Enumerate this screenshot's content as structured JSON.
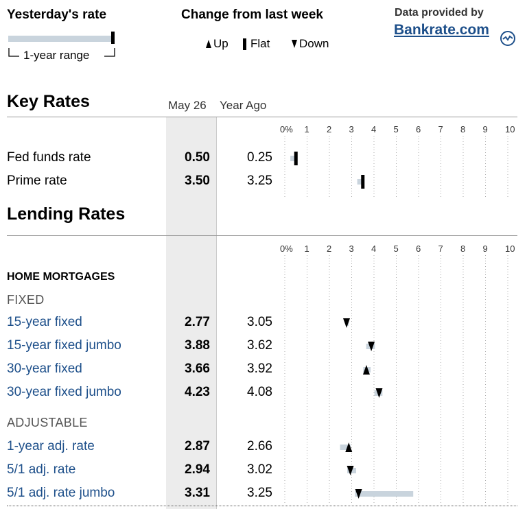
{
  "legend": {
    "yesterday_title": "Yesterday's rate",
    "range_label": "1-year range",
    "change_title": "Change from last week",
    "up_label": "Up",
    "flat_label": "Flat",
    "down_label": "Down",
    "provider_label": "Data provided by",
    "provider_logo": "Bankrate.com"
  },
  "columns": {
    "current": "May 26",
    "year_ago": "Year Ago"
  },
  "chart_data": {
    "type": "range-dot",
    "x_ticks": [
      "0%",
      "1",
      "2",
      "3",
      "4",
      "5",
      "6",
      "7",
      "8",
      "9",
      "10"
    ],
    "xlim": [
      0,
      10
    ],
    "sections": [
      {
        "title": "Key Rates",
        "groups": [
          {
            "header": "",
            "subheader": "",
            "rows": [
              {
                "label": "Fed funds rate",
                "current": "0.50",
                "year_ago": "0.25",
                "value": 0.5,
                "range": [
                  0.25,
                  0.5
                ],
                "trend": "flat"
              },
              {
                "label": "Prime rate",
                "current": "3.50",
                "year_ago": "3.25",
                "value": 3.5,
                "range": [
                  3.25,
                  3.5
                ],
                "trend": "flat"
              }
            ]
          }
        ]
      },
      {
        "title": "Lending Rates",
        "groups": [
          {
            "header": "HOME MORTGAGES",
            "subheader": "FIXED",
            "rows": [
              {
                "label": "15-year fixed",
                "current": "2.77",
                "year_ago": "3.05",
                "value": 2.77,
                "range": [
                  2.72,
                  2.86
                ],
                "trend": "down"
              },
              {
                "label": "15-year fixed jumbo",
                "current": "3.88",
                "year_ago": "3.62",
                "value": 3.88,
                "range": [
                  3.65,
                  4.04
                ],
                "trend": "down"
              },
              {
                "label": "30-year fixed",
                "current": "3.66",
                "year_ago": "3.92",
                "value": 3.66,
                "range": [
                  3.52,
                  3.85
                ],
                "trend": "up"
              },
              {
                "label": "30-year fixed jumbo",
                "current": "4.23",
                "year_ago": "4.08",
                "value": 4.23,
                "range": [
                  4.02,
                  4.38
                ],
                "trend": "down"
              }
            ]
          },
          {
            "header": "",
            "subheader": "ADJUSTABLE",
            "rows": [
              {
                "label": "1-year adj. rate",
                "current": "2.87",
                "year_ago": "2.66",
                "value": 2.87,
                "range": [
                  2.48,
                  2.95
                ],
                "trend": "up"
              },
              {
                "label": "5/1 adj. rate",
                "current": "2.94",
                "year_ago": "3.02",
                "value": 2.94,
                "range": [
                  2.8,
                  3.2
                ],
                "trend": "down"
              },
              {
                "label": "5/1 adj. rate jumbo",
                "current": "3.31",
                "year_ago": "3.25",
                "value": 3.31,
                "range": [
                  3.15,
                  5.76
                ],
                "trend": "down"
              }
            ]
          }
        ]
      }
    ]
  }
}
